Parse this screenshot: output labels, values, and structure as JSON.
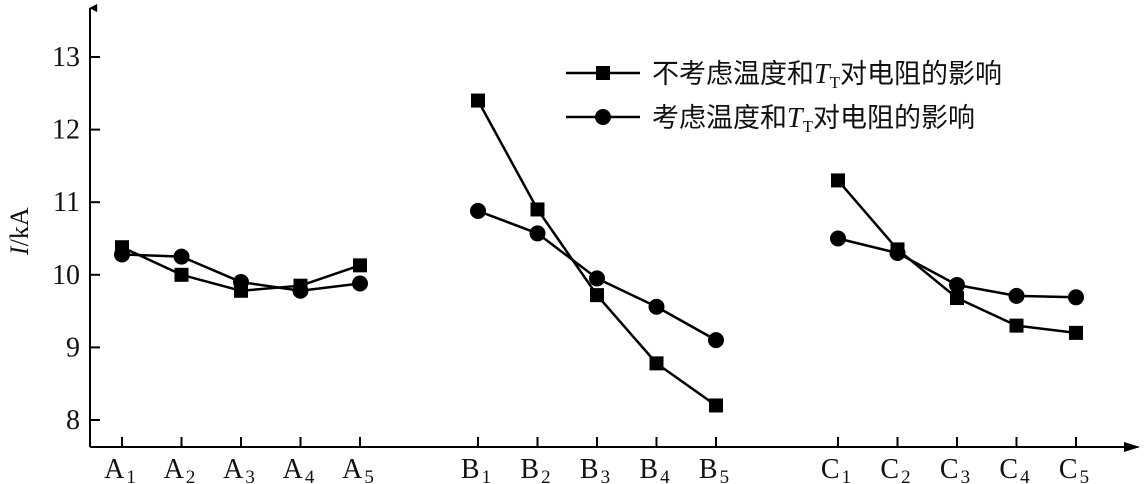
{
  "chart_data": {
    "type": "line",
    "ylabel": "I/kA",
    "ylim": [
      7.6,
      13.8
    ],
    "yticks": [
      8,
      9,
      10,
      11,
      12,
      13
    ],
    "grid": false,
    "legend_position": "top-right",
    "groups": [
      {
        "letter": "A",
        "categories": [
          {
            "main": "A",
            "sub": "1"
          },
          {
            "main": "A",
            "sub": "2"
          },
          {
            "main": "A",
            "sub": "3"
          },
          {
            "main": "A",
            "sub": "4"
          },
          {
            "main": "A",
            "sub": "5"
          }
        ]
      },
      {
        "letter": "B",
        "categories": [
          {
            "main": "B",
            "sub": "1"
          },
          {
            "main": "B",
            "sub": "2"
          },
          {
            "main": "B",
            "sub": "3"
          },
          {
            "main": "B",
            "sub": "4"
          },
          {
            "main": "B",
            "sub": "5"
          }
        ]
      },
      {
        "letter": "C",
        "categories": [
          {
            "main": "C",
            "sub": "1"
          },
          {
            "main": "C",
            "sub": "2"
          },
          {
            "main": "C",
            "sub": "3"
          },
          {
            "main": "C",
            "sub": "4"
          },
          {
            "main": "C",
            "sub": "5"
          }
        ]
      }
    ],
    "series": [
      {
        "name_parts": [
          "不考虑温度和",
          "T",
          "T",
          "对电阻的影响"
        ],
        "marker": "square",
        "color": "#000000",
        "groups": [
          {
            "x": [
              1,
              2,
              3,
              4,
              5
            ],
            "y": [
              10.38,
              10.0,
              9.78,
              9.85,
              10.13
            ]
          },
          {
            "x": [
              1,
              2,
              3,
              4,
              5
            ],
            "y": [
              12.4,
              10.9,
              9.72,
              8.78,
              8.2
            ]
          },
          {
            "x": [
              1,
              2,
              3,
              4,
              5
            ],
            "y": [
              11.3,
              10.35,
              9.68,
              9.3,
              9.2
            ]
          }
        ]
      },
      {
        "name_parts": [
          "考虑温度和",
          "T",
          "T",
          "对电阻的影响"
        ],
        "marker": "circle",
        "color": "#000000",
        "groups": [
          {
            "x": [
              1,
              2,
              3,
              4,
              5
            ],
            "y": [
              10.28,
              10.25,
              9.9,
              9.78,
              9.88
            ]
          },
          {
            "x": [
              1,
              2,
              3,
              4,
              5
            ],
            "y": [
              10.88,
              10.57,
              9.95,
              9.56,
              9.1
            ]
          },
          {
            "x": [
              1,
              2,
              3,
              4,
              5
            ],
            "y": [
              10.5,
              10.3,
              9.86,
              9.71,
              9.69
            ]
          }
        ]
      }
    ]
  }
}
